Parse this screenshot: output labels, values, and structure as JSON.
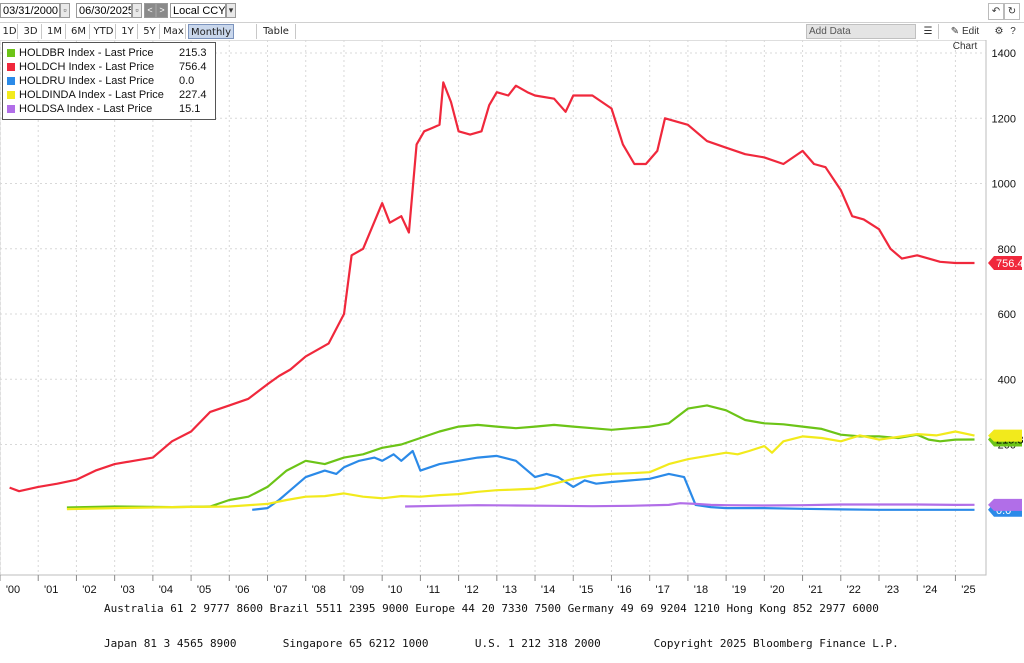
{
  "toolbar": {
    "start_date": "03/31/2000",
    "end_date": "06/30/2025",
    "currency": "Local CCY",
    "periods": [
      "1D",
      "3D",
      "1M",
      "6M",
      "YTD",
      "1Y",
      "5Y",
      "Max"
    ],
    "frequency": "Monthly",
    "table_label": "Table",
    "add_data_placeholder": "Add Data",
    "edit_chart_label": "Edit Chart"
  },
  "legend": [
    {
      "name": "HOLDBR Index - Last Price",
      "value": "215.3",
      "color": "#6cc417"
    },
    {
      "name": "HOLDCH Index - Last Price",
      "value": "756.4",
      "color": "#f0283c"
    },
    {
      "name": "HOLDRU Index - Last Price",
      "value": "0.0",
      "color": "#2b8ae8"
    },
    {
      "name": "HOLDINDA Index - Last Price",
      "value": "227.4",
      "color": "#f2ea1c"
    },
    {
      "name": "HOLDSA Index - Last Price",
      "value": "15.1",
      "color": "#b16ee8"
    }
  ],
  "footer": {
    "line1": "Australia 61 2 9777 8600 Brazil 5511 2395 9000 Europe 44 20 7330 7500 Germany 49 69 9204 1210 Hong Kong 852 2977 6000",
    "line2": "Japan 81 3 4565 8900       Singapore 65 6212 1000       U.S. 1 212 318 2000        Copyright 2025 Bloomberg Finance L.P."
  },
  "chart_data": {
    "type": "line",
    "title": "",
    "xlabel": "",
    "ylabel": "",
    "x_ticks": [
      "'00",
      "'01",
      "'02",
      "'03",
      "'04",
      "'05",
      "'06",
      "'07",
      "'08",
      "'09",
      "'10",
      "'11",
      "'12",
      "'13",
      "'14",
      "'15",
      "'16",
      "'17",
      "'18",
      "'19",
      "'20",
      "'21",
      "'22",
      "'23",
      "'24",
      "'25"
    ],
    "y_ticks": [
      200,
      400,
      600,
      800,
      1000,
      1200,
      1400
    ],
    "ylim": [
      -200,
      1440
    ],
    "xlim": [
      2000.0,
      2025.8
    ],
    "grid": true,
    "legend_position": "top-left",
    "axis_side": "right",
    "last_value_labels": [
      {
        "series": "HOLDCH",
        "value": "756.4"
      },
      {
        "series": "HOLDBR",
        "value": "215.3"
      },
      {
        "series": "HOLDRU",
        "value": "0.0"
      }
    ],
    "series": [
      {
        "name": "HOLDCH Index - Last Price",
        "color": "#f0283c",
        "x": [
          2000.25,
          2000.5,
          2001.0,
          2001.5,
          2002.0,
          2002.5,
          2003.0,
          2003.5,
          2004.0,
          2004.5,
          2005.0,
          2005.5,
          2006.0,
          2006.5,
          2007.0,
          2007.3,
          2007.6,
          2008.0,
          2008.3,
          2008.6,
          2009.0,
          2009.2,
          2009.5,
          2010.0,
          2010.2,
          2010.5,
          2010.7,
          2010.9,
          2011.1,
          2011.3,
          2011.5,
          2011.6,
          2011.8,
          2012.0,
          2012.3,
          2012.6,
          2012.8,
          2013.0,
          2013.3,
          2013.5,
          2013.8,
          2014.0,
          2014.5,
          2014.8,
          2015.0,
          2015.5,
          2016.0,
          2016.3,
          2016.6,
          2016.9,
          2017.2,
          2017.4,
          2017.7,
          2018.0,
          2018.5,
          2019.0,
          2019.5,
          2020.0,
          2020.5,
          2021.0,
          2021.3,
          2021.6,
          2022.0,
          2022.3,
          2022.6,
          2023.0,
          2023.3,
          2023.6,
          2024.0,
          2024.3,
          2024.6,
          2025.0,
          2025.5
        ],
        "y": [
          68,
          57,
          70,
          80,
          92,
          120,
          140,
          150,
          160,
          210,
          240,
          300,
          320,
          340,
          385,
          410,
          430,
          470,
          490,
          510,
          600,
          780,
          800,
          940,
          880,
          900,
          850,
          1120,
          1160,
          1170,
          1180,
          1310,
          1250,
          1160,
          1150,
          1160,
          1240,
          1280,
          1270,
          1300,
          1280,
          1270,
          1260,
          1220,
          1270,
          1270,
          1230,
          1120,
          1060,
          1060,
          1100,
          1200,
          1190,
          1180,
          1130,
          1110,
          1090,
          1080,
          1060,
          1100,
          1060,
          1050,
          980,
          900,
          890,
          860,
          800,
          770,
          780,
          770,
          760,
          756.4,
          756.4
        ]
      },
      {
        "name": "HOLDBR Index - Last Price",
        "color": "#6cc417",
        "x": [
          2001.75,
          2003.0,
          2004.5,
          2005.5,
          2006.0,
          2006.5,
          2007.0,
          2007.5,
          2008.0,
          2008.5,
          2009.0,
          2009.5,
          2010.0,
          2010.5,
          2011.0,
          2011.5,
          2012.0,
          2012.5,
          2013.0,
          2013.5,
          2014.0,
          2014.5,
          2015.0,
          2015.5,
          2016.0,
          2016.5,
          2017.0,
          2017.5,
          2018.0,
          2018.5,
          2019.0,
          2019.5,
          2020.0,
          2020.5,
          2021.0,
          2021.5,
          2022.0,
          2022.5,
          2023.0,
          2023.5,
          2024.0,
          2024.3,
          2024.6,
          2025.0,
          2025.5
        ],
        "y": [
          7,
          10,
          8,
          10,
          30,
          40,
          70,
          120,
          150,
          140,
          160,
          170,
          190,
          200,
          220,
          240,
          255,
          260,
          255,
          250,
          255,
          260,
          255,
          250,
          245,
          250,
          255,
          265,
          310,
          320,
          305,
          275,
          265,
          262,
          255,
          248,
          230,
          225,
          225,
          220,
          230,
          215,
          210,
          215,
          215.3
        ]
      },
      {
        "name": "HOLDRU Index - Last Price",
        "color": "#2b8ae8",
        "x": [
          2006.6,
          2007.0,
          2007.3,
          2007.6,
          2008.0,
          2008.5,
          2008.8,
          2009.0,
          2009.4,
          2009.8,
          2010.0,
          2010.3,
          2010.5,
          2010.8,
          2011.0,
          2011.5,
          2012.0,
          2012.5,
          2013.0,
          2013.5,
          2014.0,
          2014.3,
          2014.6,
          2015.0,
          2015.3,
          2015.6,
          2016.0,
          2016.5,
          2017.0,
          2017.5,
          2017.9,
          2018.2,
          2018.6,
          2019.0,
          2020.0,
          2021.0,
          2022.0,
          2023.0,
          2024.0,
          2025.0,
          2025.5
        ],
        "y": [
          0,
          5,
          30,
          60,
          100,
          120,
          110,
          130,
          150,
          160,
          150,
          170,
          150,
          180,
          120,
          140,
          150,
          160,
          165,
          150,
          100,
          110,
          100,
          70,
          90,
          80,
          85,
          90,
          95,
          110,
          100,
          15,
          8,
          5,
          5,
          3,
          1,
          0,
          0,
          0,
          0
        ]
      },
      {
        "name": "HOLDINDA Index - Last Price",
        "color": "#f2ea1c",
        "x": [
          2001.75,
          2003.0,
          2004.5,
          2006.0,
          2007.0,
          2007.5,
          2008.0,
          2008.5,
          2009.0,
          2009.5,
          2010.0,
          2010.5,
          2011.0,
          2011.5,
          2012.0,
          2012.5,
          2013.0,
          2013.5,
          2014.0,
          2014.5,
          2015.0,
          2015.5,
          2016.0,
          2016.5,
          2017.0,
          2017.5,
          2018.0,
          2018.5,
          2019.0,
          2019.3,
          2019.6,
          2020.0,
          2020.2,
          2020.5,
          2021.0,
          2021.5,
          2022.0,
          2022.5,
          2023.0,
          2023.3,
          2023.6,
          2024.0,
          2024.5,
          2025.0,
          2025.5
        ],
        "y": [
          2,
          5,
          8,
          10,
          18,
          30,
          40,
          42,
          50,
          40,
          35,
          42,
          40,
          45,
          48,
          55,
          60,
          62,
          65,
          80,
          95,
          105,
          110,
          112,
          115,
          140,
          155,
          165,
          175,
          170,
          180,
          195,
          175,
          210,
          225,
          220,
          210,
          228,
          215,
          220,
          225,
          232,
          228,
          240,
          227.4
        ]
      },
      {
        "name": "HOLDSA Index - Last Price",
        "color": "#b16ee8",
        "x": [
          2010.6,
          2011.5,
          2012.5,
          2013.5,
          2014.5,
          2015.5,
          2016.5,
          2017.5,
          2017.8,
          2018.2,
          2018.6,
          2019.0,
          2020.0,
          2021.0,
          2022.0,
          2023.0,
          2024.0,
          2025.0,
          2025.5
        ],
        "y": [
          10,
          12,
          14,
          13,
          12,
          11,
          12,
          15,
          20,
          18,
          15,
          14,
          13,
          14,
          16,
          16,
          16,
          15,
          15.1
        ]
      }
    ]
  }
}
